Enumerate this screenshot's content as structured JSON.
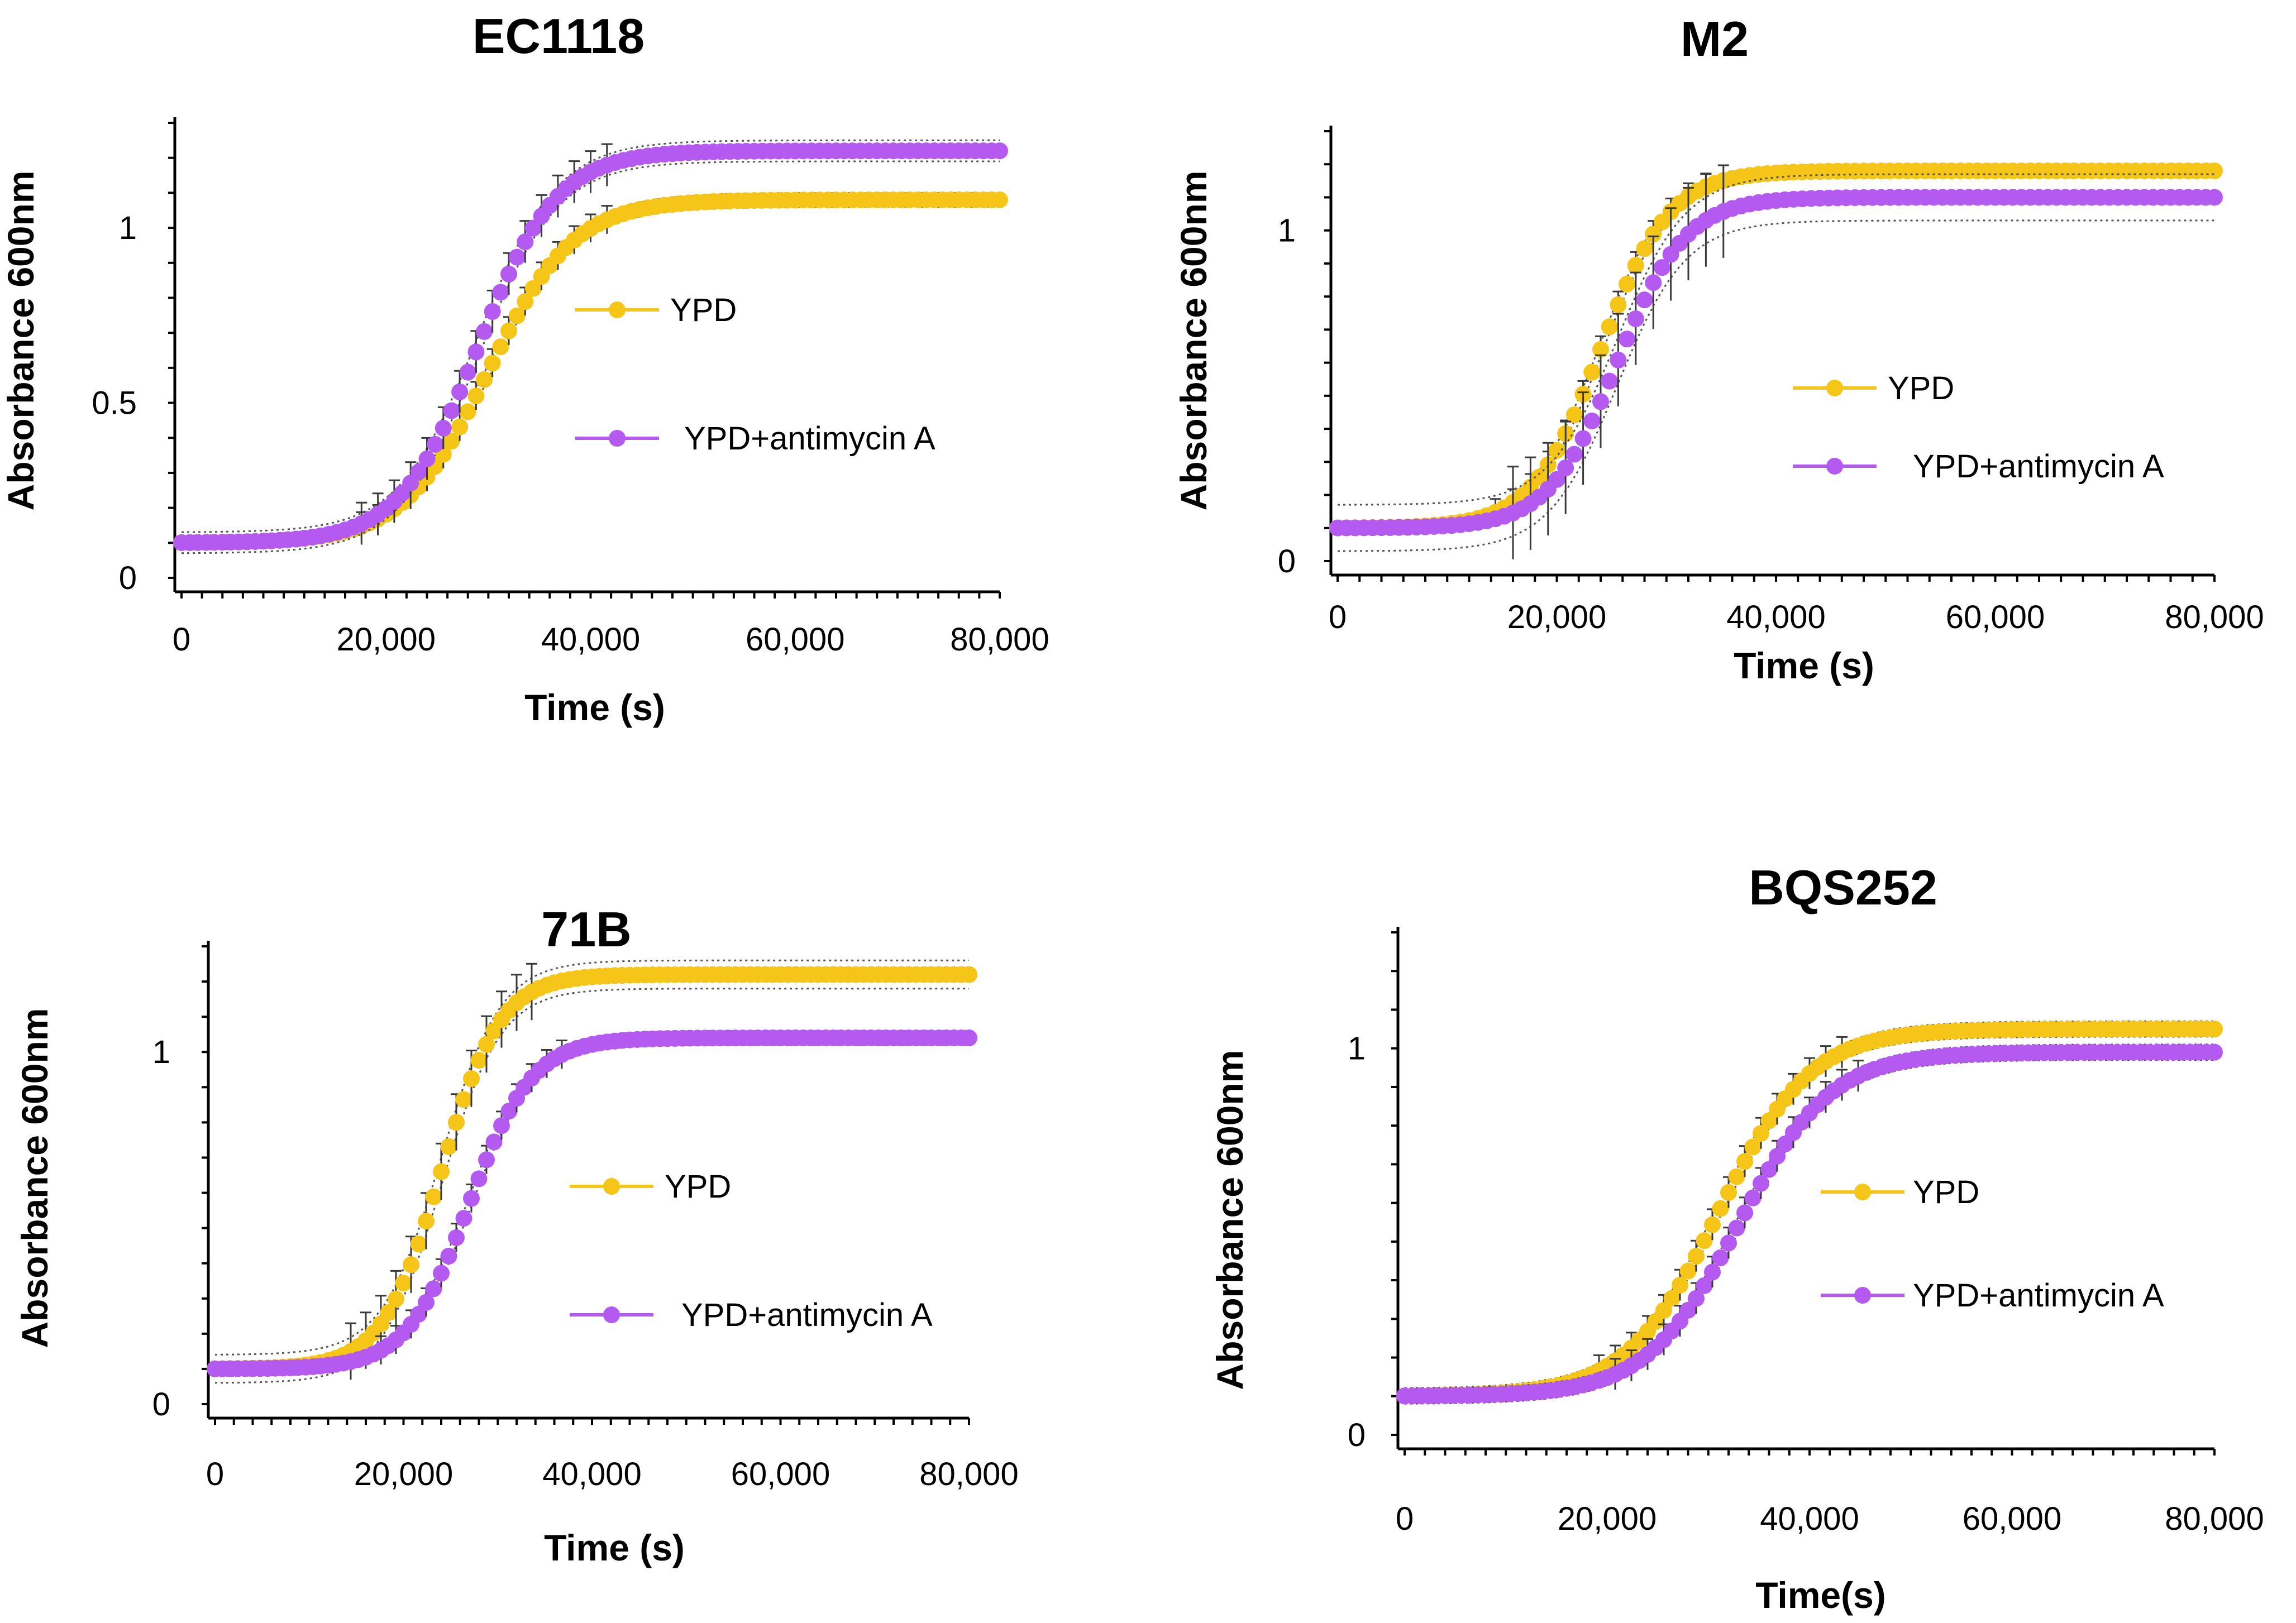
{
  "colors": {
    "ypd": "#F5C518",
    "antimycin": "#B45AF0"
  },
  "chart_data": [
    {
      "type": "scatter",
      "title": "EC1118",
      "xlabel": "Time (s)",
      "ylabel": "Absorbance 600nm",
      "xlim": [
        0,
        80000
      ],
      "ylim": [
        0,
        1.3
      ],
      "xticks": [
        0,
        20000,
        40000,
        60000,
        80000
      ],
      "xtick_labels": [
        "0",
        "20,000",
        "40,000",
        "60,000",
        "80,000"
      ],
      "yticks": [
        0,
        0.5,
        1
      ],
      "ytick_labels": [
        "0",
        "0.5",
        "1"
      ],
      "legend": [
        "YPD",
        "YPD+antimycin A"
      ],
      "series": [
        {
          "name": "YPD",
          "color": "#F5C518",
          "y0": 0.1,
          "ymax": 1.08,
          "mid": 30000,
          "k": 0.00024,
          "err": 0.02
        },
        {
          "name": "YPD+antimycin A",
          "color": "#B45AF0",
          "y0": 0.1,
          "ymax": 1.22,
          "mid": 29000,
          "k": 0.00026,
          "err": 0.03
        }
      ]
    },
    {
      "type": "scatter",
      "title": "M2",
      "xlabel": "Time (s)",
      "ylabel": "Absorbance 600nm",
      "xlim": [
        0,
        80000
      ],
      "ylim": [
        0,
        1.3
      ],
      "xticks": [
        0,
        20000,
        40000,
        60000,
        80000
      ],
      "xtick_labels": [
        "0",
        "20,000",
        "40,000",
        "60,000",
        "80,000"
      ],
      "yticks": [
        0,
        1
      ],
      "ytick_labels": [
        "0",
        "1"
      ],
      "legend": [
        "YPD",
        "YPD+antimycin A"
      ],
      "series": [
        {
          "name": "YPD",
          "color": "#F5C518",
          "y0": 0.1,
          "ymax": 1.18,
          "mid": 24000,
          "k": 0.00032,
          "err": 0.02
        },
        {
          "name": "YPD+antimycin A",
          "color": "#B45AF0",
          "y0": 0.1,
          "ymax": 1.1,
          "mid": 25500,
          "k": 0.00032,
          "err": 0.07
        }
      ]
    },
    {
      "type": "scatter",
      "title": "71B",
      "xlabel": "Time (s)",
      "ylabel": "Absorbance 600nm",
      "xlim": [
        0,
        80000
      ],
      "ylim": [
        0,
        1.3
      ],
      "xticks": [
        0,
        20000,
        40000,
        60000,
        80000
      ],
      "xtick_labels": [
        "0",
        "20,000",
        "40,000",
        "60,000",
        "80,000"
      ],
      "yticks": [
        0,
        1
      ],
      "ytick_labels": [
        "0",
        "1"
      ],
      "legend": [
        "YPD",
        "YPD+antimycin A"
      ],
      "series": [
        {
          "name": "YPD",
          "color": "#F5C518",
          "y0": 0.1,
          "ymax": 1.22,
          "mid": 24000,
          "k": 0.00032,
          "err": 0.04
        },
        {
          "name": "YPD+antimycin A",
          "color": "#B45AF0",
          "y0": 0.1,
          "ymax": 1.04,
          "mid": 27000,
          "k": 0.0003,
          "err": 0.02
        }
      ]
    },
    {
      "type": "scatter",
      "title": "BQS252",
      "xlabel": "Time(s)",
      "ylabel": "Absorbance 600nm",
      "xlim": [
        0,
        80000
      ],
      "ylim": [
        0,
        1.3
      ],
      "xticks": [
        0,
        20000,
        40000,
        60000,
        80000
      ],
      "xtick_labels": [
        "0",
        "20,000",
        "40,000",
        "60,000",
        "80,000"
      ],
      "yticks": [
        0,
        1
      ],
      "ytick_labels": [
        "0",
        "1"
      ],
      "legend": [
        "YPD",
        "YPD+antimycin A"
      ],
      "series": [
        {
          "name": "YPD",
          "color": "#F5C518",
          "y0": 0.1,
          "ymax": 1.05,
          "mid": 31000,
          "k": 0.00022,
          "err": 0.02
        },
        {
          "name": "YPD+antimycin A",
          "color": "#B45AF0",
          "y0": 0.1,
          "ymax": 0.99,
          "mid": 33000,
          "k": 0.00022,
          "err": 0.02
        }
      ]
    }
  ]
}
